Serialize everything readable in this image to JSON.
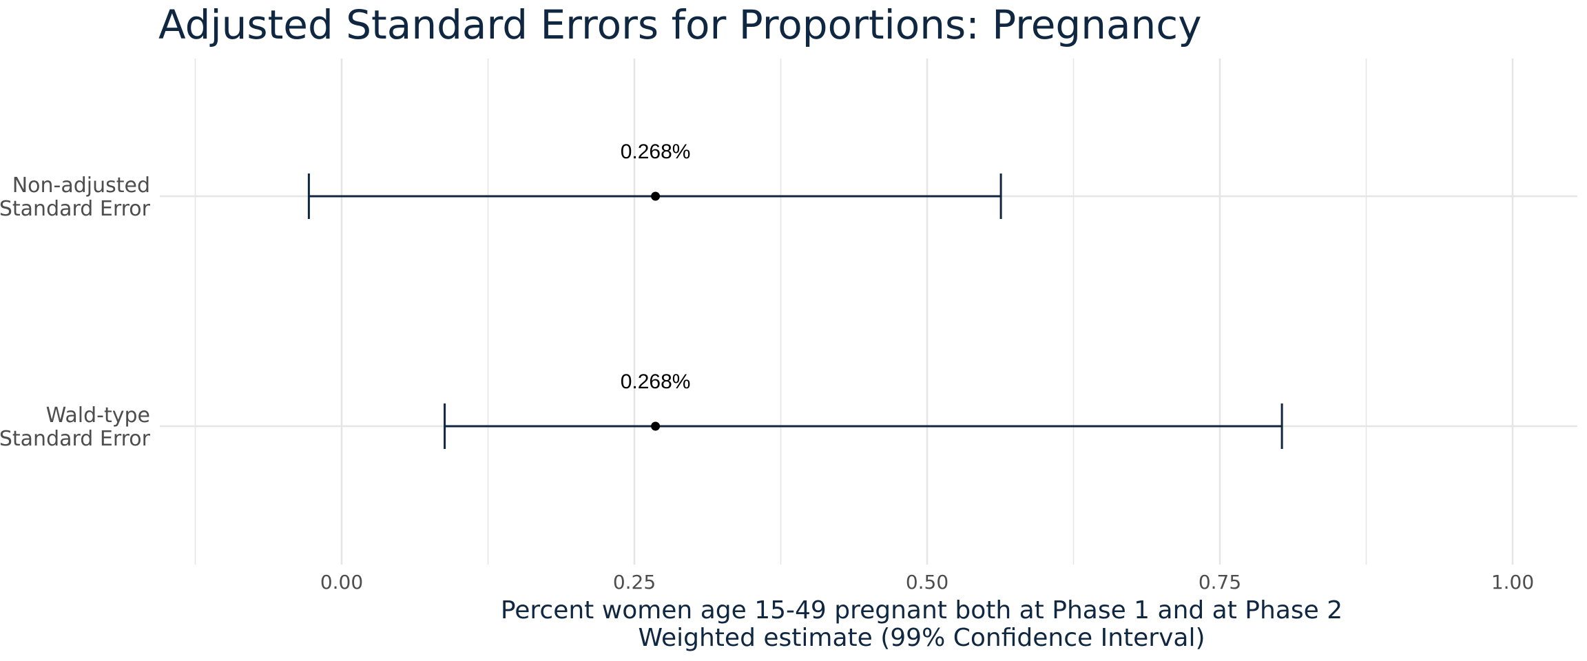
{
  "chart_data": {
    "type": "errorbar",
    "title": "Adjusted Standard Errors for Proportions: Pregnancy",
    "xlabel": [
      "Percent women age 15-49 pregnant both at Phase 1 and at Phase 2",
      "Weighted estimate (99% Confidence Interval)"
    ],
    "ylabel": "",
    "xlim": [
      -0.125,
      1.055
    ],
    "x_ticks": [
      {
        "value": 0.0,
        "label": "0.00"
      },
      {
        "value": 0.25,
        "label": "0.25"
      },
      {
        "value": 0.5,
        "label": "0.50"
      },
      {
        "value": 0.75,
        "label": "0.75"
      },
      {
        "value": 1.0,
        "label": "1.00"
      }
    ],
    "grid": true,
    "categories": [
      {
        "label": [
          "Non-adjusted",
          "Standard Error"
        ],
        "estimate": 0.268,
        "lower": -0.028,
        "upper": 0.563,
        "data_label": "0.268%"
      },
      {
        "label": [
          "Wald-type",
          "Standard Error"
        ],
        "estimate": 0.268,
        "lower": 0.088,
        "upper": 0.803,
        "data_label": "0.268%"
      }
    ],
    "colors": {
      "bar": "#0f2740",
      "point": "#000000",
      "grid": "#e5e5e5"
    }
  }
}
